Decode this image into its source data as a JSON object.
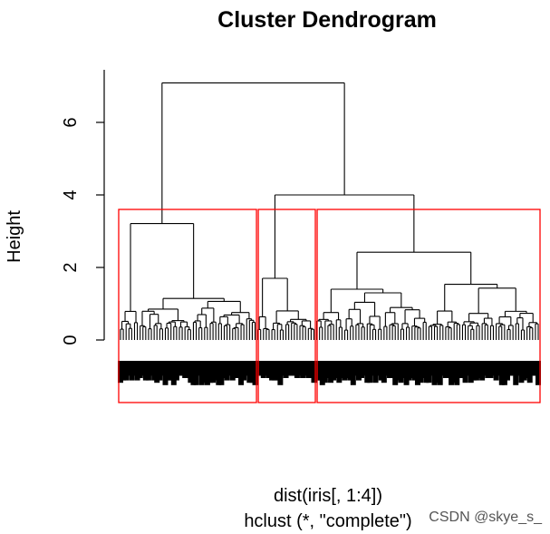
{
  "chart_data": {
    "type": "dendrogram",
    "title": "Cluster Dendrogram",
    "ylabel": "Height",
    "xlabel": "dist(iris[, 1:4])",
    "sub": "hclust (*, \"complete\")",
    "ylim": [
      0,
      7.1
    ],
    "yticks": [
      0,
      2,
      4,
      6
    ],
    "n_leaves": 150,
    "cut_k": 3,
    "cut_height": 3.6,
    "rect_color": "#ff0000",
    "line_color": "#000000",
    "merges": [
      {
        "name": "root",
        "height": 7.09
      },
      {
        "name": "cluster-1",
        "height": 3.21
      },
      {
        "name": "cluster-2-3",
        "height": 4.0
      },
      {
        "name": "cluster-1-right",
        "height": 2.2
      },
      {
        "name": "cluster-2-3-right",
        "height": 2.42
      },
      {
        "name": "cluster-1-far-left",
        "height": 1.4
      },
      {
        "name": "cluster-2",
        "height": 1.7
      },
      {
        "name": "cluster-3-left",
        "height": 1.4
      }
    ],
    "clusters": [
      {
        "name": "cluster-1",
        "leaf_count": 49
      },
      {
        "name": "cluster-2",
        "leaf_count": 21
      },
      {
        "name": "cluster-3",
        "leaf_count": 80
      }
    ]
  },
  "watermark": "CSDN @skye_s_"
}
